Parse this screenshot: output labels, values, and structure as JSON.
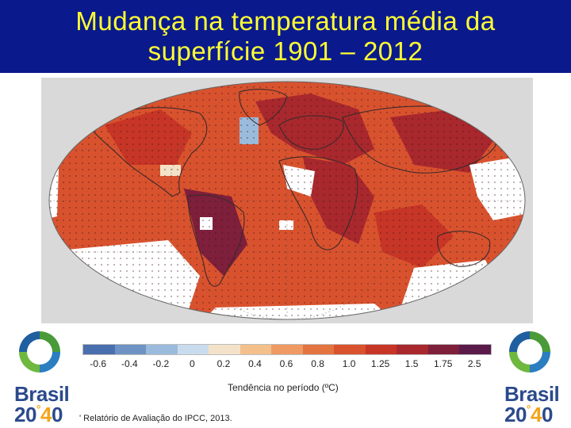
{
  "title": {
    "line1": "Mudança na temperatura média da",
    "line2": "superfície 1901 – 2012"
  },
  "legend": {
    "ticks": [
      "-0.6",
      "-0.4",
      "-0.2",
      "0",
      "0.2",
      "0.4",
      "0.6",
      "0.8",
      "1.0",
      "1.25",
      "1.5",
      "1.75",
      "2.5"
    ],
    "colors": [
      "#4a6fae",
      "#6e93c4",
      "#9bbbdc",
      "#c9dced",
      "#f4e2c8",
      "#f3c08c",
      "#ee9a62",
      "#e4743f",
      "#d9522e",
      "#c73526",
      "#a8282d",
      "#7e1f3b",
      "#5a1a4a"
    ],
    "title": "Tendência no período (ºC)"
  },
  "source": "' Relatório de Avaliação do IPCC, 2013.",
  "logos": {
    "brand": "Brasil",
    "year_prefix": "20",
    "year_four": "4",
    "year_suffix": "0",
    "degree": "°"
  },
  "map": {
    "ocean_color": "#d9d9d9",
    "warm_color": "#d9522e",
    "hot_color": "#a8282d",
    "cool_color": "#9bbbdc",
    "nodata_color": "#ffffff"
  }
}
